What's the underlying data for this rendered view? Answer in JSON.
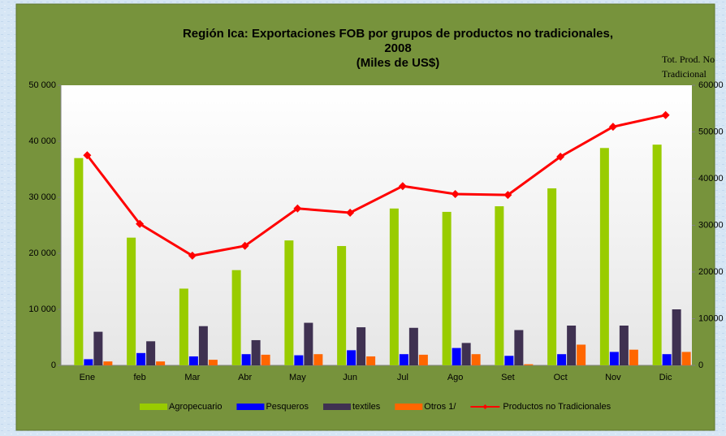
{
  "chart_data": {
    "type": "bar",
    "title": [
      "Región Ica: Exportaciones FOB por grupos de productos no tradicionales,",
      "2008",
      "(Miles de US$)"
    ],
    "y2_label": [
      "Tot. Prod. No",
      "Tradicional"
    ],
    "categories": [
      "Ene",
      "feb",
      "Mar",
      "Abr",
      "May",
      "Jun",
      "Jul",
      "Ago",
      "Set",
      "Oct",
      "Nov",
      "Dic"
    ],
    "series": [
      {
        "name": "Agropecuario",
        "color": "#99cc00",
        "values": [
          37000,
          22800,
          13700,
          17000,
          22300,
          21300,
          28000,
          27400,
          28400,
          31600,
          38800,
          39400
        ]
      },
      {
        "name": "Pesqueros",
        "color": "#0000ff",
        "values": [
          1100,
          2200,
          1600,
          2000,
          1800,
          2700,
          2000,
          3100,
          1700,
          2000,
          2400,
          2000
        ]
      },
      {
        "name": "textiles",
        "color": "#3f3151",
        "values": [
          6000,
          4300,
          7000,
          4500,
          7600,
          6800,
          6700,
          4000,
          6300,
          7100,
          7100,
          10000
        ]
      },
      {
        "name": "Otros 1/",
        "color": "#ff6600",
        "values": [
          700,
          700,
          1000,
          1900,
          2000,
          1600,
          1900,
          2000,
          200,
          3700,
          2800,
          2400
        ]
      },
      {
        "name": "Productos no Tradicionales",
        "color": "#ff0000",
        "type": "line",
        "axis": "y2",
        "values": [
          45000,
          30300,
          23500,
          25600,
          33600,
          32700,
          38400,
          36700,
          36500,
          44700,
          51100,
          53600
        ]
      }
    ],
    "ylim": [
      0,
      50000
    ],
    "yticks": [
      {
        "value": 0,
        "label": "0"
      },
      {
        "value": 10000,
        "label": "10 000"
      },
      {
        "value": 20000,
        "label": "20 000"
      },
      {
        "value": 30000,
        "label": "30 000"
      },
      {
        "value": 40000,
        "label": "40 000"
      },
      {
        "value": 50000,
        "label": "50 000"
      }
    ],
    "y2lim": [
      0,
      60000
    ],
    "y2ticks": [
      0,
      10000,
      20000,
      30000,
      40000,
      50000,
      60000
    ]
  }
}
